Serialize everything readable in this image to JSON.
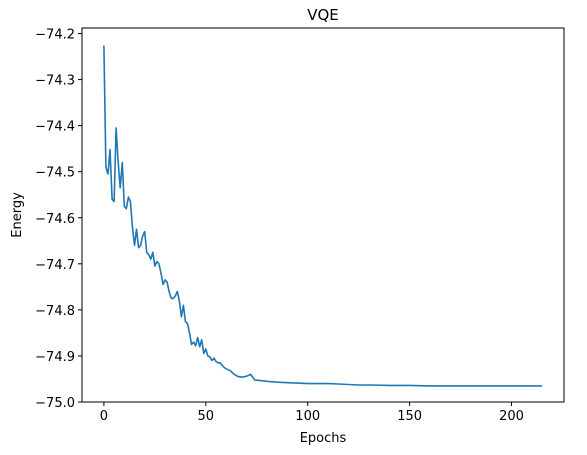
{
  "chart_data": {
    "type": "line",
    "title": "VQE",
    "xlabel": "Epochs",
    "ylabel": "Energy",
    "xlim": [
      -10.75,
      225.75
    ],
    "ylim": [
      -75.0,
      -74.188
    ],
    "xticks": [
      0,
      50,
      100,
      150,
      200
    ],
    "xtick_labels": [
      "0",
      "50",
      "100",
      "150",
      "200"
    ],
    "yticks": [
      -75.0,
      -74.9,
      -74.8,
      -74.7,
      -74.6,
      -74.5,
      -74.4,
      -74.3,
      -74.2
    ],
    "ytick_labels": [
      "−75.0",
      "−74.9",
      "−74.8",
      "−74.7",
      "−74.6",
      "−74.5",
      "−74.4",
      "−74.3",
      "−74.2"
    ],
    "grid": false,
    "series": [
      {
        "color": "#1f77b4",
        "x": [
          0,
          1,
          2,
          3,
          4,
          5,
          6,
          7,
          8,
          9,
          10,
          11,
          12,
          13,
          14,
          15,
          16,
          17,
          18,
          19,
          20,
          21,
          22,
          23,
          24,
          25,
          26,
          27,
          28,
          29,
          30,
          31,
          32,
          33,
          34,
          35,
          36,
          37,
          38,
          39,
          40,
          41,
          42,
          43,
          44,
          45,
          46,
          47,
          48,
          49,
          50,
          51,
          52,
          53,
          54,
          55,
          56,
          57,
          58,
          59,
          60,
          62,
          64,
          66,
          68,
          70,
          72,
          74,
          76,
          78,
          80,
          85,
          90,
          95,
          100,
          105,
          110,
          115,
          120,
          125,
          130,
          140,
          150,
          160,
          170,
          180,
          190,
          200,
          210,
          215
        ],
        "values": [
          -74.226,
          -74.49,
          -74.505,
          -74.452,
          -74.56,
          -74.565,
          -74.405,
          -74.48,
          -74.535,
          -74.48,
          -74.575,
          -74.58,
          -74.555,
          -74.565,
          -74.62,
          -74.66,
          -74.625,
          -74.665,
          -74.66,
          -74.64,
          -74.63,
          -74.675,
          -74.68,
          -74.69,
          -74.675,
          -74.705,
          -74.695,
          -74.7,
          -74.72,
          -74.745,
          -74.735,
          -74.74,
          -74.76,
          -74.775,
          -74.775,
          -74.77,
          -74.76,
          -74.78,
          -74.815,
          -74.79,
          -74.825,
          -74.83,
          -74.85,
          -74.875,
          -74.87,
          -74.878,
          -74.86,
          -74.88,
          -74.865,
          -74.895,
          -74.885,
          -74.9,
          -74.902,
          -74.91,
          -74.905,
          -74.912,
          -74.915,
          -74.915,
          -74.92,
          -74.925,
          -74.928,
          -74.932,
          -74.94,
          -74.945,
          -74.946,
          -74.944,
          -74.94,
          -74.952,
          -74.953,
          -74.954,
          -74.955,
          -74.957,
          -74.958,
          -74.959,
          -74.96,
          -74.96,
          -74.96,
          -74.961,
          -74.962,
          -74.963,
          -74.963,
          -74.964,
          -74.964,
          -74.965,
          -74.965,
          -74.965,
          -74.965,
          -74.965,
          -74.965,
          -74.965
        ]
      }
    ]
  }
}
